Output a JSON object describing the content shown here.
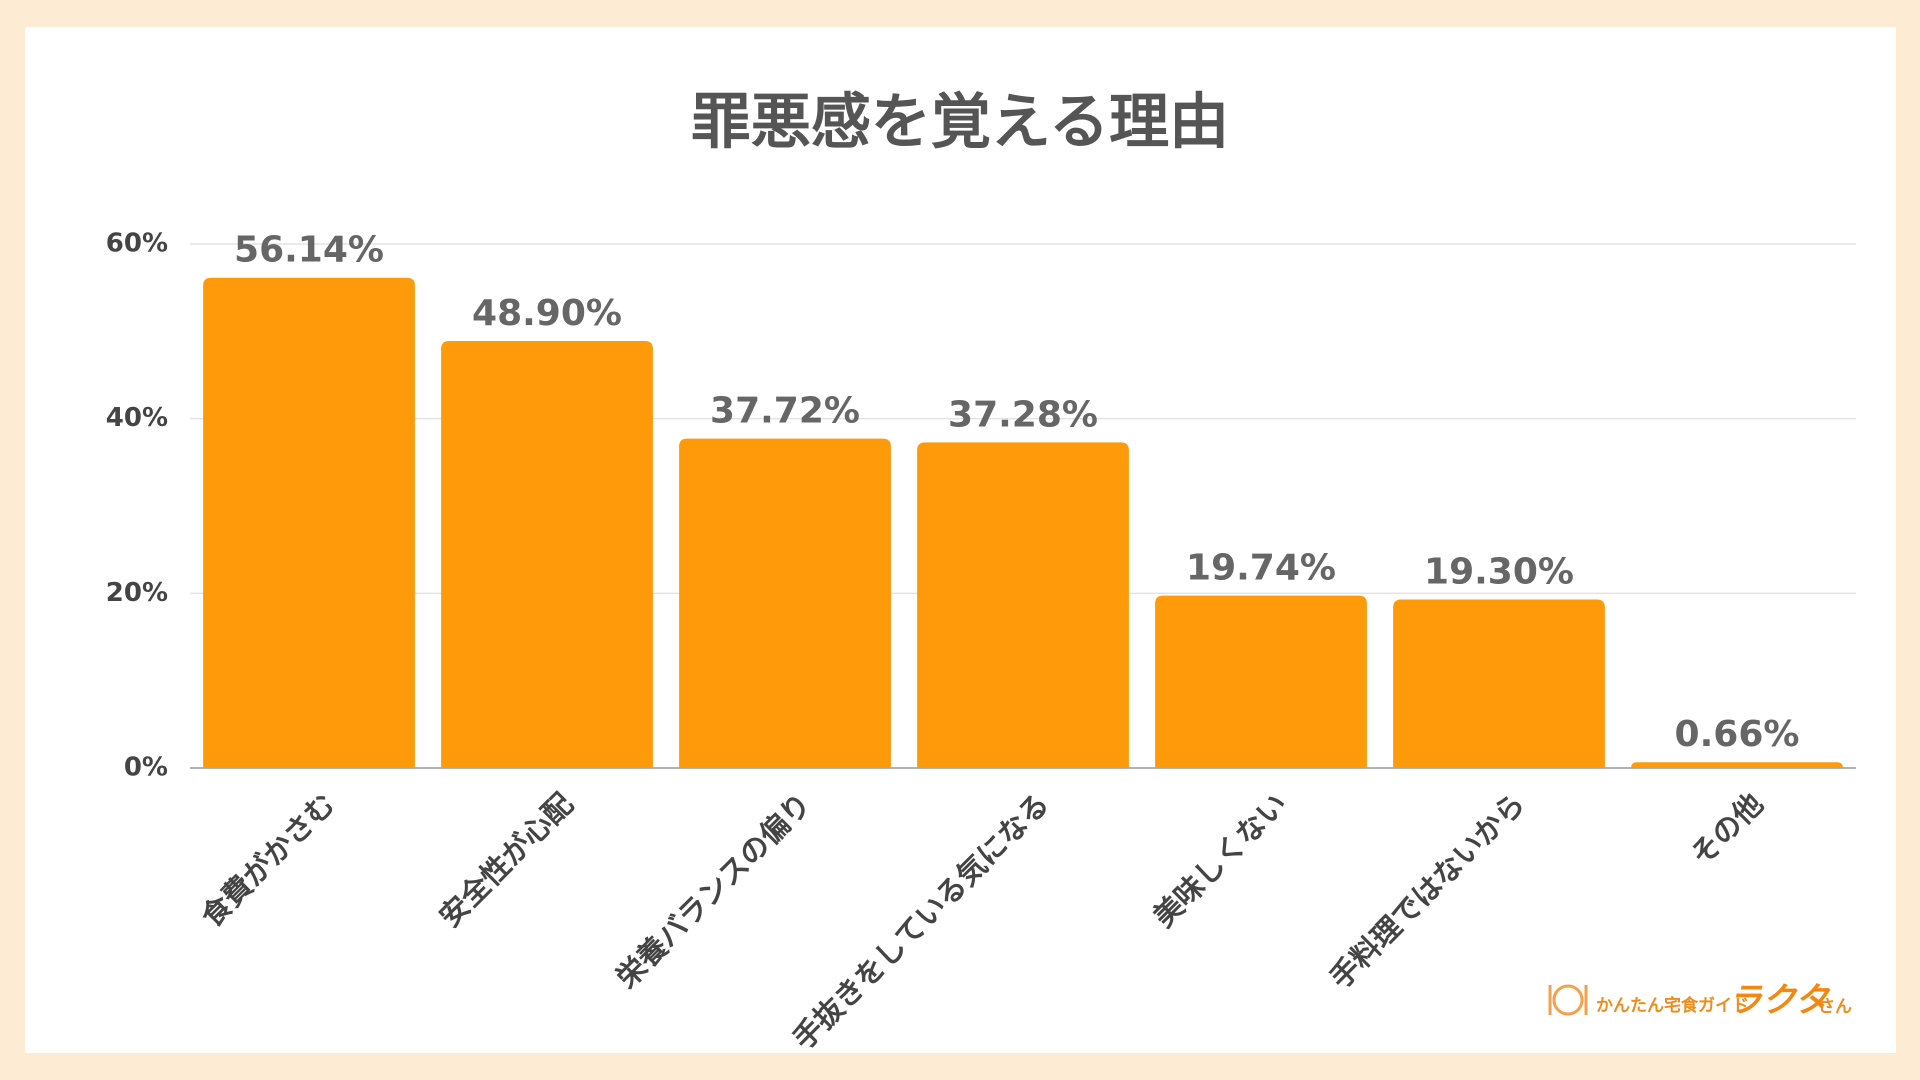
{
  "chart_data": {
    "type": "bar",
    "title": "罪悪感を覚える理由",
    "categories": [
      "食費がかさむ",
      "安全性が心配",
      "栄養バランスの偏り",
      "手抜きをしている気になる",
      "美味しくない",
      "手料理ではないから",
      "その他"
    ],
    "values": [
      56.14,
      48.9,
      37.72,
      37.28,
      19.74,
      19.3,
      0.66
    ],
    "value_labels": [
      "56.14%",
      "48.90%",
      "37.72%",
      "37.28%",
      "19.74%",
      "19.30%",
      "0.66%"
    ],
    "color": "#ff9a0a",
    "ylim": [
      0,
      60
    ],
    "yticks": [
      {
        "value": 0,
        "label": "0%"
      },
      {
        "value": 20,
        "label": "20%"
      },
      {
        "value": 40,
        "label": "40%"
      },
      {
        "value": 60,
        "label": "60%"
      }
    ],
    "grid": true,
    "logo": {
      "tagline": "かんたん宅食ガイド",
      "name": "ラクタ",
      "suffix": "さん"
    }
  }
}
